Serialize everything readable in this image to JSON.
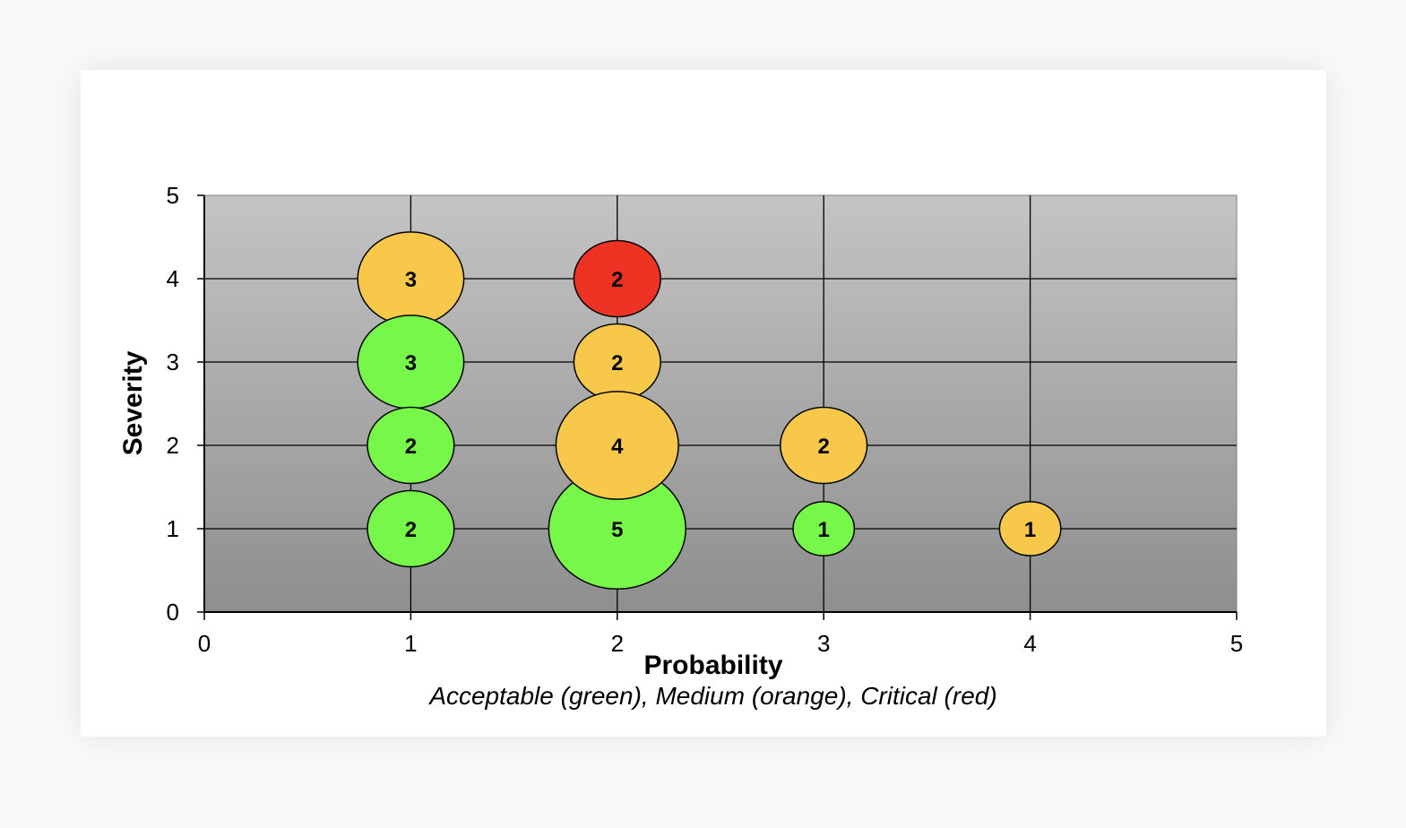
{
  "chart_data": {
    "type": "bubble",
    "title": "",
    "xlabel": "Probability",
    "ylabel": "Severity",
    "caption": "Acceptable (green), Medium (orange), Critical (red)",
    "xlim": [
      0,
      5
    ],
    "ylim": [
      0,
      5
    ],
    "xticks": [
      "0",
      "1",
      "2",
      "3",
      "4",
      "5"
    ],
    "yticks": [
      "0",
      "1",
      "2",
      "3",
      "4",
      "5"
    ],
    "grid": true,
    "categories_legend": {
      "Acceptable": "green",
      "Medium": "orange",
      "Critical": "red"
    },
    "colors": {
      "green": "#76f74a",
      "orange": "#f8c84a",
      "red": "#ee3324"
    },
    "points": [
      {
        "x": 1,
        "y": 4,
        "count": 3,
        "level": "orange"
      },
      {
        "x": 1,
        "y": 3,
        "count": 3,
        "level": "green"
      },
      {
        "x": 1,
        "y": 2,
        "count": 2,
        "level": "green"
      },
      {
        "x": 1,
        "y": 1,
        "count": 2,
        "level": "green"
      },
      {
        "x": 2,
        "y": 4,
        "count": 2,
        "level": "red"
      },
      {
        "x": 2,
        "y": 3,
        "count": 2,
        "level": "orange"
      },
      {
        "x": 2,
        "y": 1,
        "count": 5,
        "level": "green"
      },
      {
        "x": 2,
        "y": 2,
        "count": 4,
        "level": "orange"
      },
      {
        "x": 3,
        "y": 2,
        "count": 2,
        "level": "orange"
      },
      {
        "x": 3,
        "y": 1,
        "count": 1,
        "level": "green"
      },
      {
        "x": 4,
        "y": 1,
        "count": 1,
        "level": "orange"
      }
    ]
  }
}
